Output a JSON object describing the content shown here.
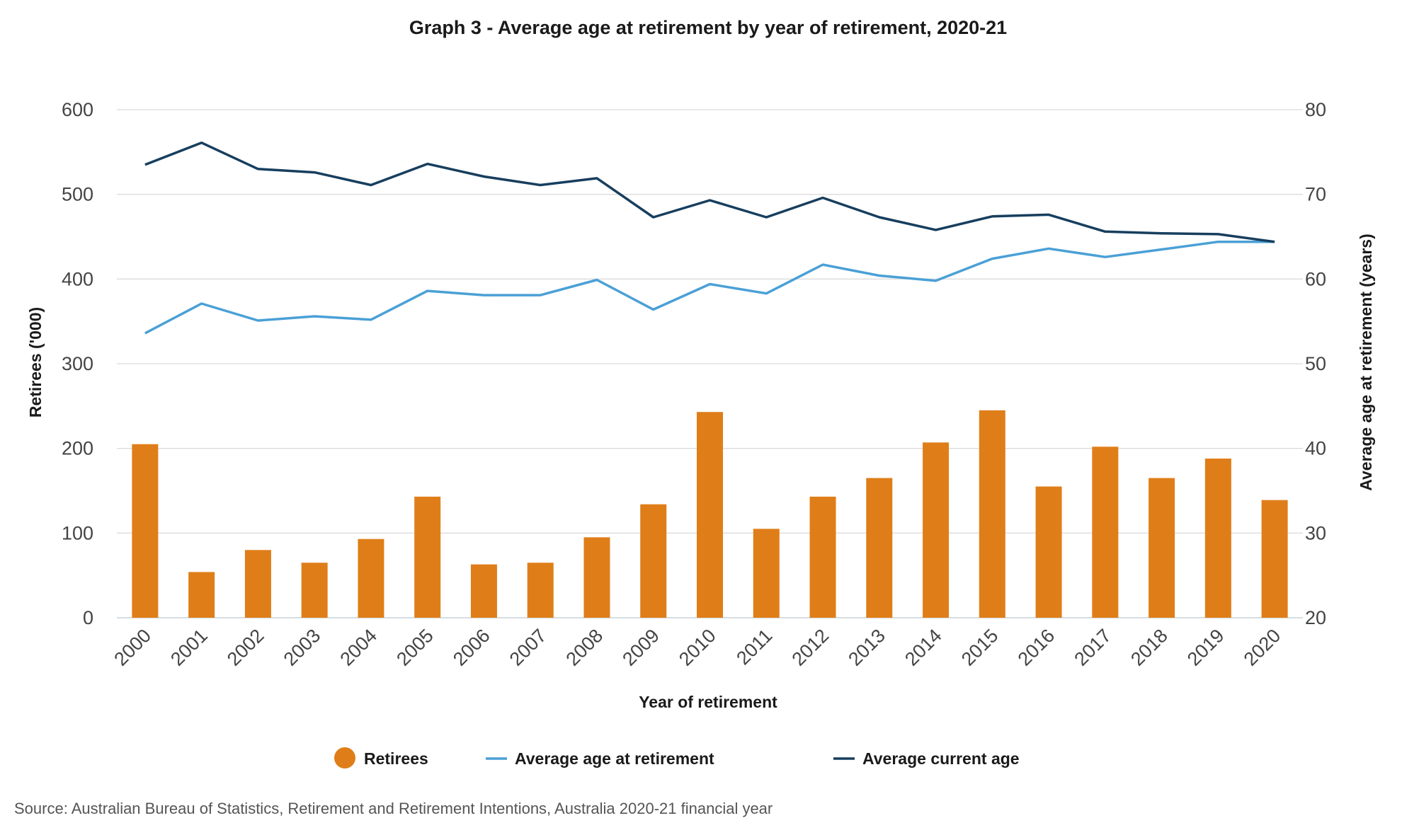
{
  "source": "Source: Australian Bureau of Statistics, Retirement and Retirement Intentions, Australia 2020-21 financial year",
  "colors": {
    "retirees": "#df7e18",
    "avg_retirement_age": "#4aa0d6",
    "avg_current_age": "#173e5e"
  },
  "chart_data": {
    "type": "bar",
    "title": "Graph 3 - Average age at retirement by year of retirement, 2020-21",
    "xlabel": "Year of retirement",
    "ylabel": "Retirees ('000)",
    "y2label": "Average age at retirement (years)",
    "ylim": [
      0,
      600
    ],
    "y2lim": [
      20,
      80
    ],
    "yticks": [
      "0",
      "100",
      "200",
      "300",
      "400",
      "500",
      "600"
    ],
    "y2ticks": [
      "20",
      "30",
      "40",
      "50",
      "60",
      "70",
      "80"
    ],
    "grid": true,
    "legend_position": "bottom",
    "categories": [
      "2000",
      "2001",
      "2002",
      "2003",
      "2004",
      "2005",
      "2006",
      "2007",
      "2008",
      "2009",
      "2010",
      "2011",
      "2012",
      "2013",
      "2014",
      "2015",
      "2016",
      "2017",
      "2018",
      "2019",
      "2020"
    ],
    "series": [
      {
        "name": "Retirees",
        "type": "bar",
        "axis": "left",
        "values": [
          205,
          54,
          80,
          65,
          93,
          143,
          63,
          65,
          95,
          134,
          243,
          105,
          143,
          165,
          207,
          245,
          155,
          202,
          165,
          188,
          139
        ]
      },
      {
        "name": "Average age at retirement",
        "type": "line",
        "axis": "right",
        "values": [
          53.6,
          57.1,
          55.1,
          55.6,
          55.2,
          58.6,
          58.1,
          58.1,
          59.9,
          56.4,
          59.4,
          58.3,
          61.7,
          60.4,
          59.8,
          62.4,
          63.6,
          62.6,
          63.5,
          64.4,
          64.4
        ]
      },
      {
        "name": "Average current age",
        "type": "line",
        "axis": "right",
        "values": [
          73.5,
          76.1,
          73.0,
          72.6,
          71.1,
          73.6,
          72.1,
          71.1,
          71.9,
          67.3,
          69.3,
          67.3,
          69.6,
          67.3,
          65.8,
          67.4,
          67.6,
          65.6,
          65.4,
          65.3,
          64.4
        ]
      }
    ]
  }
}
